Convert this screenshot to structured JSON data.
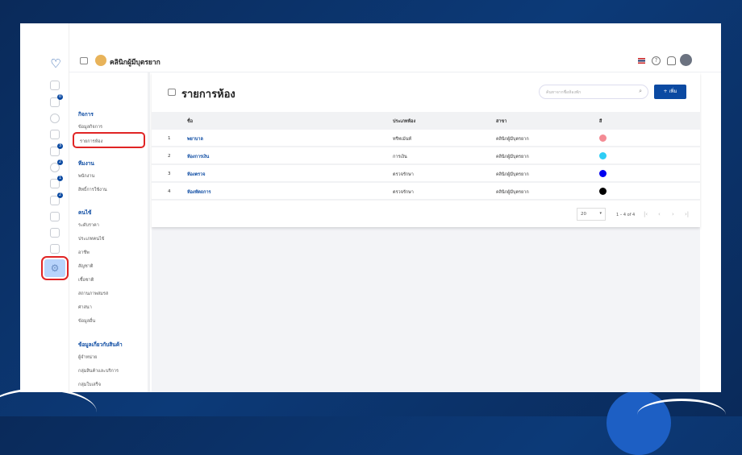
{
  "app": {
    "clinic_name": "คลินิกผู้มีบุตรยาก",
    "logo": "shield-tooth-logo"
  },
  "rail": {
    "badges": [
      "0",
      "3",
      "2",
      "1",
      "2"
    ]
  },
  "nav": {
    "sections": [
      {
        "title": "กิจการ",
        "items": [
          "ข้อมูลกิจการ",
          "รายการห้อง"
        ]
      },
      {
        "title": "ทีมงาน",
        "items": [
          "พนักงาน",
          "สิทธิ์การใช้งาน"
        ]
      },
      {
        "title": "คนไข้",
        "items": [
          "ระดับราคา",
          "ประเภทคนไข้",
          "อาชีพ",
          "สัญชาติ",
          "เชื้อชาติ",
          "สถานภาพสมรส",
          "ศาสนา",
          "ข้อมูลอื่น"
        ]
      },
      {
        "title": "ข้อมูลเกี่ยวกับสินค้า",
        "items": [
          "ผู้จำหน่าย",
          "กลุ่มสินค้าและบริการ",
          "กลุ่มใบเสร็จ"
        ]
      }
    ],
    "active": "รายการห้อง"
  },
  "page": {
    "title": "รายการห้อง",
    "search_placeholder": "ค้นหาจากชื่อห้องพัก",
    "add_label": "+ เพิ่ม"
  },
  "table": {
    "headers": [
      "ชื่อ",
      "ประเภทห้อง",
      "สาขา",
      "สี"
    ],
    "rows": [
      {
        "no": "1",
        "name": "พยาบาล",
        "type": "ทรีทเม้นท์",
        "branch": "คลินิกผู้มีบุตรยาก",
        "color": "#f48b94"
      },
      {
        "no": "2",
        "name": "ห้องการเงิน",
        "type": "การเงิน",
        "branch": "คลินิกผู้มีบุตรยาก",
        "color": "#2ecdf5"
      },
      {
        "no": "3",
        "name": "ห้องตรวจ",
        "type": "ตรวจรักษา",
        "branch": "คลินิกผู้มีบุตรยาก",
        "color": "#0000f0"
      },
      {
        "no": "4",
        "name": "ห้องหัตถการ",
        "type": "ตรวจรักษา",
        "branch": "คลินิกผู้มีบุตรยาก",
        "color": "#000000"
      }
    ]
  },
  "pagination": {
    "page_size": "20",
    "range": "1 – 4 of 4"
  }
}
